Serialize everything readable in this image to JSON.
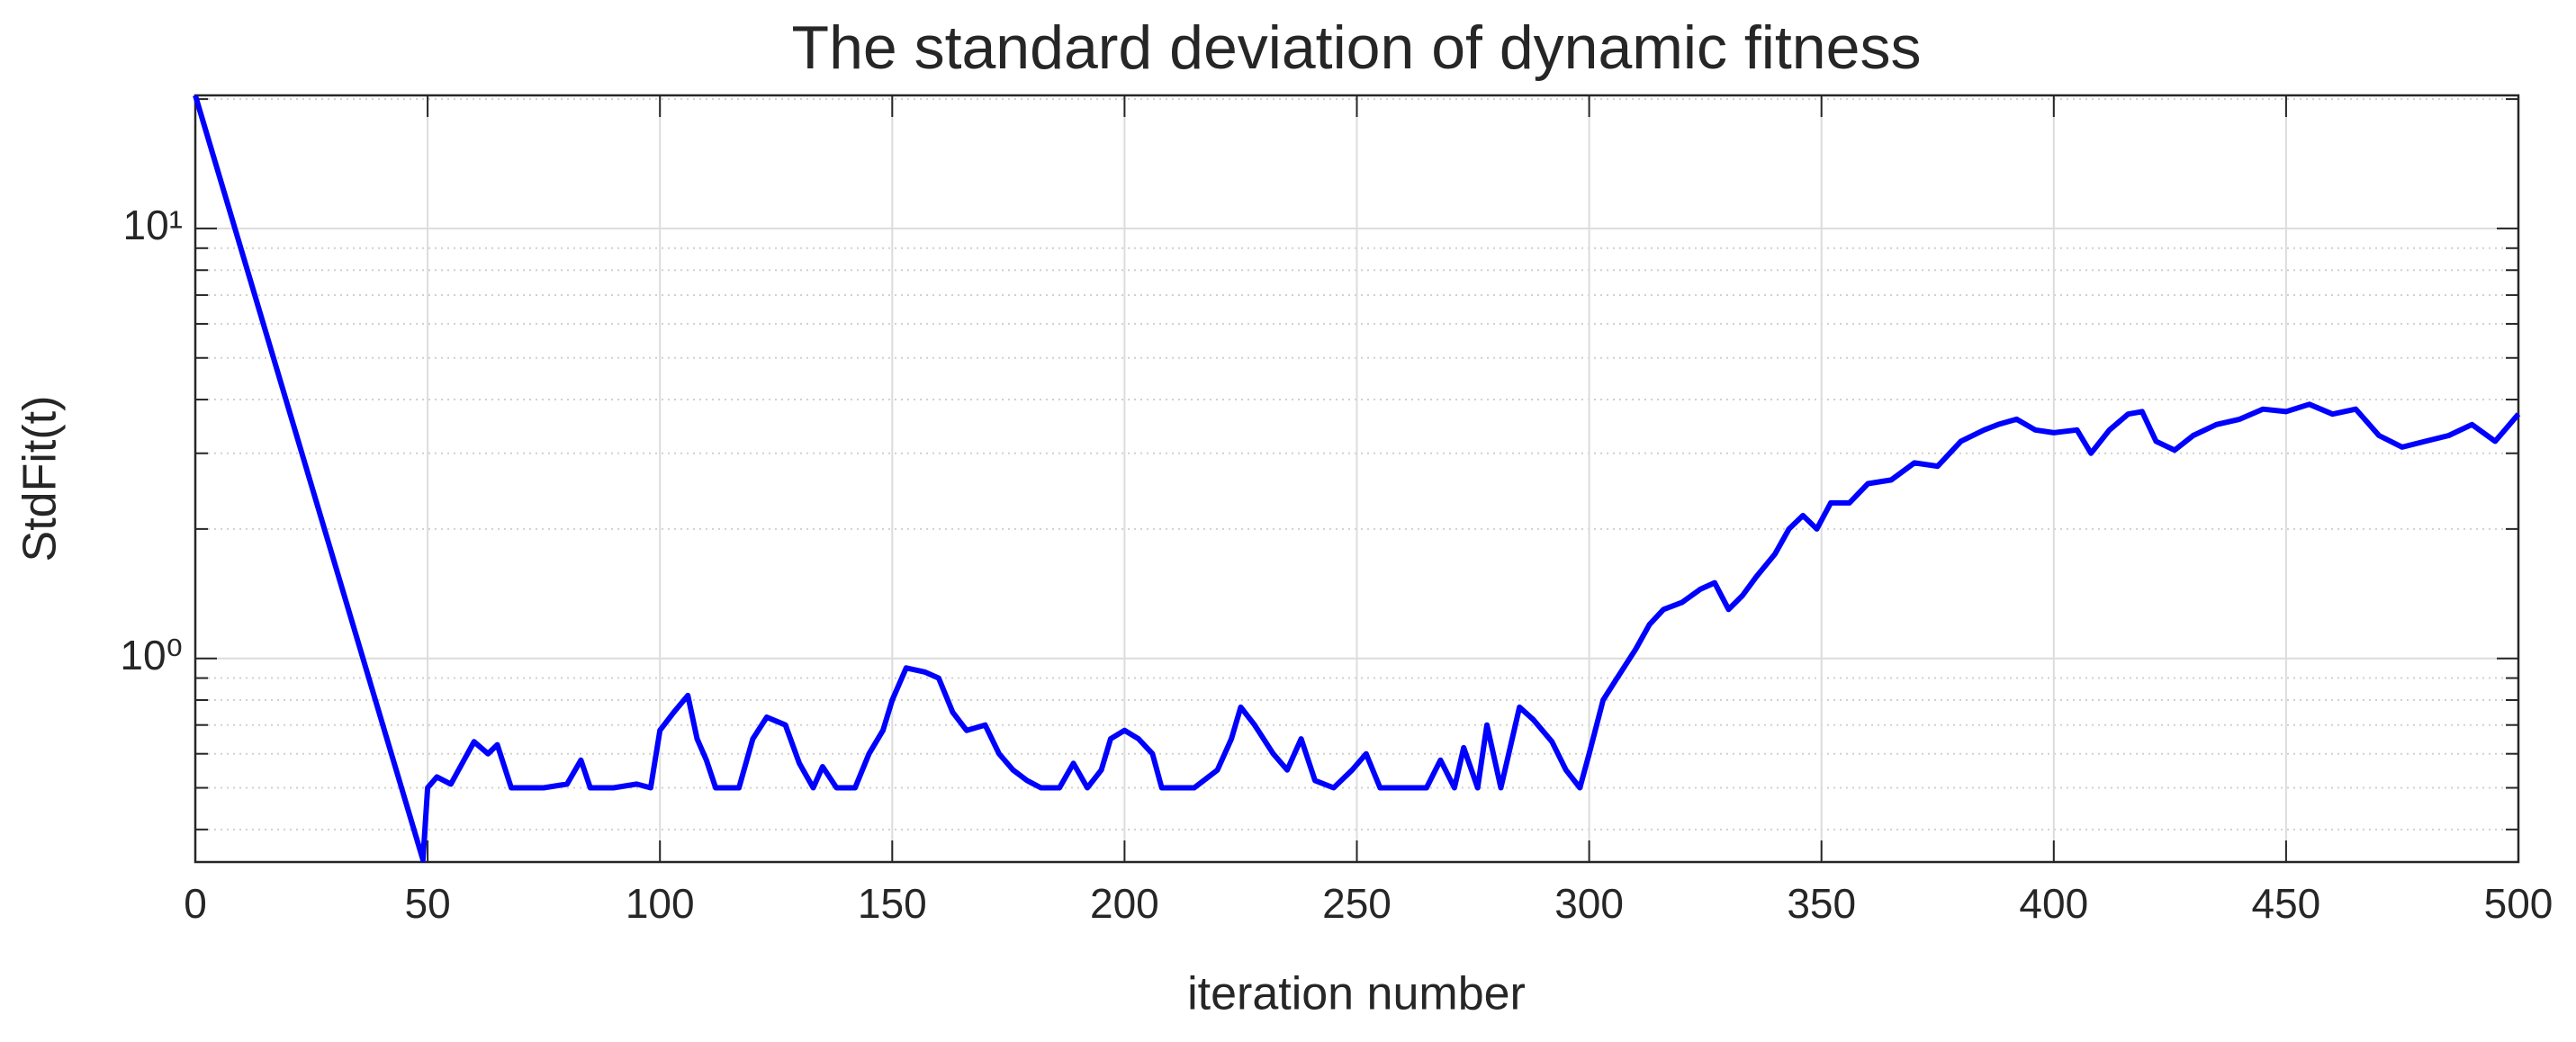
{
  "chart_data": {
    "type": "line",
    "title": "The standard deviation of dynamic fitness",
    "xlabel": "iteration number",
    "ylabel": "StdFit(t)",
    "color": "#0000ff",
    "log_y": true,
    "grid": true,
    "xlim": [
      0,
      500
    ],
    "xticks": [
      0,
      50,
      100,
      150,
      200,
      250,
      300,
      350,
      400,
      450,
      500
    ],
    "ylim": [
      0.336,
      20.4
    ],
    "yticks": [
      {
        "value": 1,
        "label": "10⁰"
      },
      {
        "value": 10,
        "label": "10¹"
      }
    ],
    "yminorticks": [
      0.4,
      0.5,
      0.6,
      0.7,
      0.8,
      0.9,
      2,
      3,
      4,
      5,
      6,
      7,
      8,
      9,
      20
    ],
    "x": [
      0,
      49,
      50,
      52,
      55,
      60,
      63,
      65,
      68,
      75,
      80,
      83,
      85,
      90,
      95,
      98,
      100,
      103,
      106,
      108,
      110,
      112,
      117,
      120,
      123,
      127,
      130,
      133,
      135,
      138,
      142,
      145,
      148,
      150,
      153,
      157,
      160,
      163,
      166,
      170,
      173,
      176,
      179,
      182,
      186,
      189,
      192,
      195,
      197,
      200,
      203,
      206,
      208,
      215,
      220,
      223,
      225,
      228,
      232,
      235,
      238,
      241,
      245,
      249,
      252,
      255,
      260,
      265,
      268,
      271,
      273,
      276,
      278,
      281,
      285,
      288,
      292,
      295,
      298,
      300,
      303,
      306,
      310,
      313,
      316,
      320,
      324,
      327,
      330,
      333,
      336,
      340,
      343,
      346,
      349,
      352,
      356,
      360,
      365,
      370,
      375,
      380,
      385,
      388,
      392,
      396,
      400,
      405,
      408,
      412,
      416,
      419,
      422,
      426,
      430,
      435,
      440,
      445,
      450,
      455,
      460,
      465,
      470,
      475,
      480,
      485,
      490,
      495,
      500
    ],
    "values": [
      20.4,
      0.34,
      0.5,
      0.53,
      0.51,
      0.64,
      0.6,
      0.63,
      0.5,
      0.5,
      0.51,
      0.58,
      0.5,
      0.5,
      0.51,
      0.5,
      0.68,
      0.75,
      0.82,
      0.65,
      0.58,
      0.5,
      0.5,
      0.65,
      0.73,
      0.7,
      0.57,
      0.5,
      0.56,
      0.5,
      0.5,
      0.6,
      0.68,
      0.8,
      0.95,
      0.93,
      0.9,
      0.75,
      0.68,
      0.7,
      0.6,
      0.55,
      0.52,
      0.5,
      0.5,
      0.57,
      0.5,
      0.55,
      0.65,
      0.68,
      0.65,
      0.6,
      0.5,
      0.5,
      0.55,
      0.65,
      0.77,
      0.7,
      0.6,
      0.55,
      0.65,
      0.52,
      0.5,
      0.55,
      0.6,
      0.5,
      0.5,
      0.5,
      0.58,
      0.5,
      0.62,
      0.5,
      0.7,
      0.5,
      0.77,
      0.72,
      0.64,
      0.55,
      0.5,
      0.6,
      0.8,
      0.9,
      1.05,
      1.2,
      1.3,
      1.35,
      1.45,
      1.5,
      1.3,
      1.4,
      1.55,
      1.75,
      2.0,
      2.15,
      2.0,
      2.3,
      2.3,
      2.55,
      2.6,
      2.85,
      2.8,
      3.2,
      3.4,
      3.5,
      3.6,
      3.4,
      3.35,
      3.4,
      3.0,
      3.4,
      3.7,
      3.75,
      3.2,
      3.05,
      3.3,
      3.5,
      3.6,
      3.8,
      3.75,
      3.9,
      3.7,
      3.8,
      3.3,
      3.1,
      3.2,
      3.3,
      3.5,
      3.2,
      3.7
    ]
  }
}
